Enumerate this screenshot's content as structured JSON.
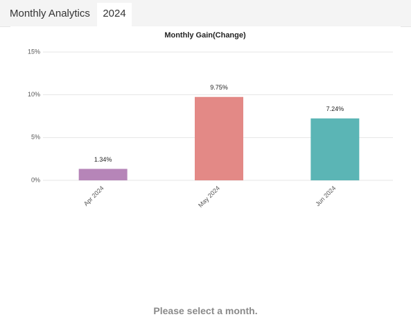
{
  "tabs": [
    "Monthly Analytics",
    "2024"
  ],
  "chart_data": {
    "type": "bar",
    "title": "Monthly Gain(Change)",
    "categories": [
      "Apr 2024",
      "May 2024",
      "Jun 2024"
    ],
    "values": [
      1.34,
      9.75,
      7.24
    ],
    "value_labels": [
      "1.34%",
      "9.75%",
      "7.24%"
    ],
    "colors": [
      "#b685b8",
      "#e38986",
      "#5bb5b5"
    ],
    "ylim": [
      0,
      15
    ],
    "yticks": [
      {
        "value": 0,
        "label": "0%"
      },
      {
        "value": 5,
        "label": "5%"
      },
      {
        "value": 10,
        "label": "10%"
      },
      {
        "value": 15,
        "label": "15%"
      }
    ],
    "grid": true
  },
  "message": "Please select a month."
}
